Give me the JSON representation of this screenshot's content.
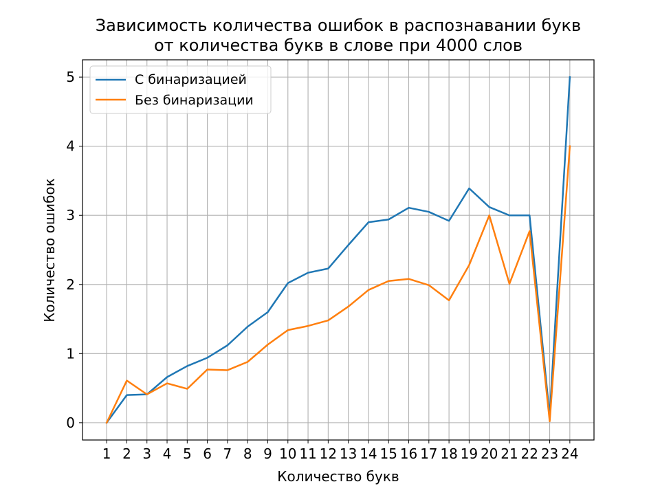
{
  "chart_data": {
    "type": "line",
    "title": [
      "Зависимость количества ошибок в распознавании букв",
      "от количества букв в слове при 4000 слов"
    ],
    "xlabel": "Количество букв",
    "ylabel": "Количество ошибок",
    "x": [
      1,
      2,
      3,
      4,
      5,
      6,
      7,
      8,
      9,
      10,
      11,
      12,
      13,
      14,
      15,
      16,
      17,
      18,
      19,
      20,
      21,
      22,
      23,
      24
    ],
    "xlim": [
      -0.2,
      25.2
    ],
    "ylim": [
      -0.25,
      5.25
    ],
    "yticks": [
      0,
      1,
      2,
      3,
      4,
      5
    ],
    "grid": true,
    "legend_position": "top-left",
    "series": [
      {
        "name": "С бинаризацией",
        "color": "#1f77b4",
        "values": [
          0,
          0.4,
          0.41,
          0.66,
          0.82,
          0.94,
          1.12,
          1.39,
          1.6,
          2.02,
          2.17,
          2.23,
          2.57,
          2.9,
          2.94,
          3.11,
          3.05,
          2.92,
          3.39,
          3.12,
          3.0,
          3.0,
          0.1,
          5.0
        ]
      },
      {
        "name": "Без бинаризации",
        "color": "#ff7f0e",
        "values": [
          0,
          0.61,
          0.41,
          0.57,
          0.49,
          0.77,
          0.76,
          0.88,
          1.13,
          1.34,
          1.4,
          1.48,
          1.68,
          1.92,
          2.05,
          2.08,
          1.99,
          1.77,
          2.28,
          3.0,
          2.01,
          2.77,
          0.02,
          4.0
        ]
      }
    ]
  }
}
